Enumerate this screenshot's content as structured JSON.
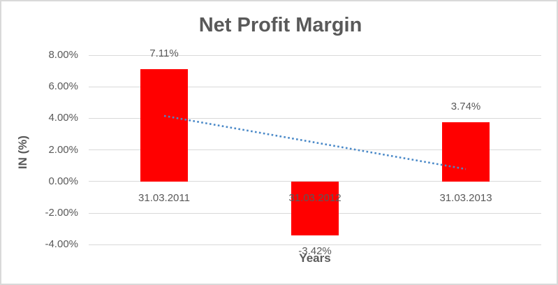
{
  "title": "Net Profit Margin",
  "axes": {
    "y_title": "IN (%)",
    "x_title": "Years"
  },
  "colors": {
    "bar": "#ff0000",
    "trendline": "#4a89c8",
    "gridline": "#d9d9d9",
    "text": "#595959",
    "border": "#d9d9d9",
    "background": "#ffffff"
  },
  "chart_data": {
    "type": "bar",
    "title": "Net Profit Margin",
    "xlabel": "Years",
    "ylabel": "IN (%)",
    "categories": [
      "31.03.2011",
      "31.03.2012",
      "31.03.2013"
    ],
    "values": [
      7.11,
      -3.42,
      3.74
    ],
    "data_labels": [
      "7.11%",
      "-3.42%",
      "3.74%"
    ],
    "ylim": [
      -4,
      8
    ],
    "ytick_step": 2,
    "yticks": [
      {
        "value": 8,
        "label": "8.00%"
      },
      {
        "value": 6,
        "label": "6.00%"
      },
      {
        "value": 4,
        "label": "4.00%"
      },
      {
        "value": 2,
        "label": "2.00%"
      },
      {
        "value": 0,
        "label": "0.00%"
      },
      {
        "value": -2,
        "label": "-2.00%"
      },
      {
        "value": -4,
        "label": "-4.00%"
      }
    ],
    "grid": "horizontal",
    "legend": "none",
    "bar_color": "#ff0000",
    "trendline": {
      "type": "linear",
      "style": "dotted",
      "color": "#4a89c8",
      "start_value": 4.16,
      "end_value": 0.79
    }
  }
}
